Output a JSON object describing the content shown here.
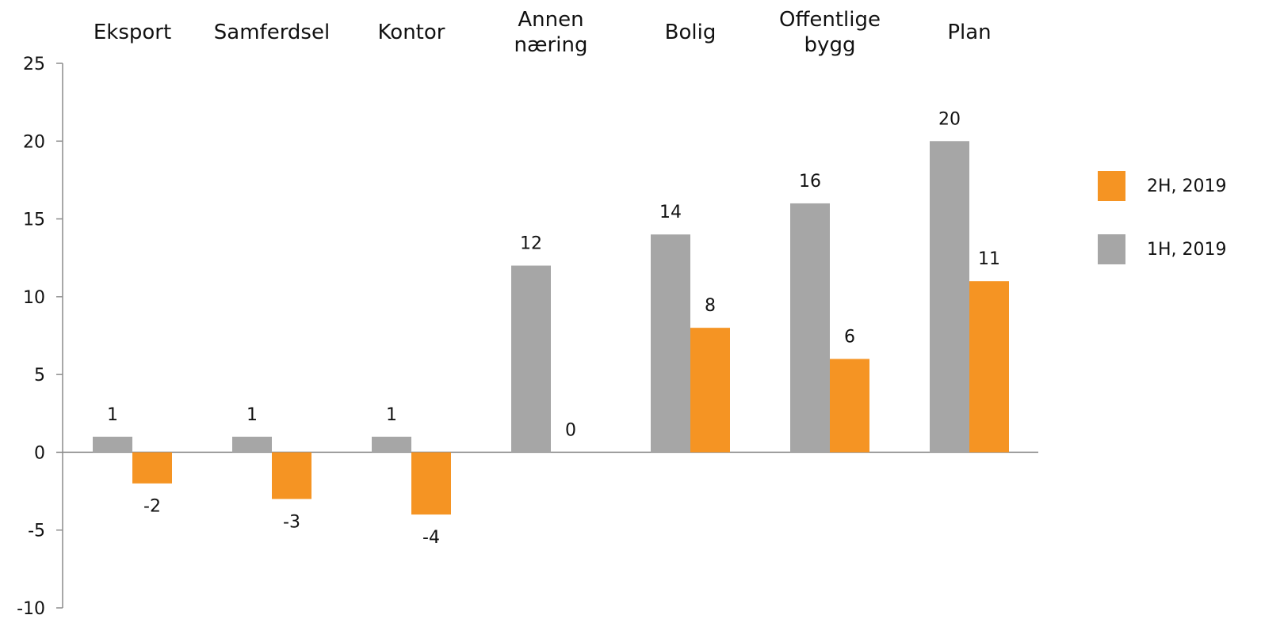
{
  "chart_data": {
    "type": "bar",
    "categories": [
      [
        "Eksport"
      ],
      [
        "Samferdsel"
      ],
      [
        "Kontor"
      ],
      [
        "Annen",
        "næring"
      ],
      [
        "Bolig"
      ],
      [
        "Offentlige",
        "bygg"
      ],
      [
        "Plan"
      ]
    ],
    "series": [
      {
        "name": "1H, 2019",
        "color": "#a6a6a6",
        "values": [
          1,
          1,
          1,
          12,
          14,
          16,
          20
        ]
      },
      {
        "name": "2H, 2019",
        "color": "#f59423",
        "values": [
          -2,
          -3,
          -4,
          0,
          8,
          6,
          11
        ]
      }
    ],
    "ylim": [
      -10,
      25
    ],
    "yticks": [
      "-10",
      "-5",
      "0",
      "5",
      "10",
      "15",
      "20",
      "25"
    ],
    "legend_order": [
      1,
      0
    ],
    "legend_position": "right",
    "grid": false
  }
}
